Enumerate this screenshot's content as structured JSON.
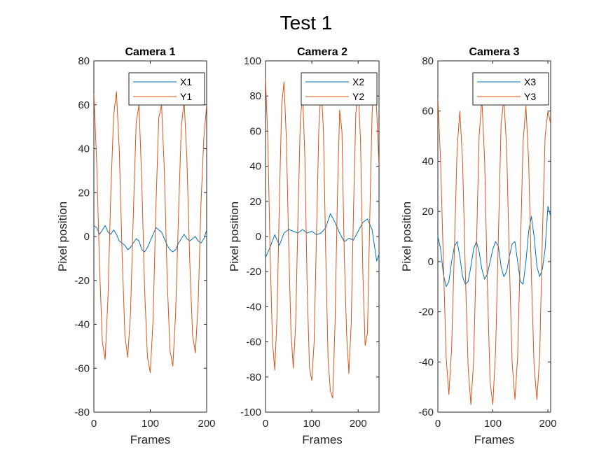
{
  "figure_title": "Test 1",
  "colors": {
    "x_series": "#0072BD",
    "y_series": "#D95319"
  },
  "chart_data": [
    {
      "type": "line",
      "title": "Camera 1",
      "xlabel": "Frames",
      "ylabel": "Pixel position",
      "xlim": [
        0,
        200
      ],
      "ylim": [
        -80,
        80
      ],
      "xticks": [
        0,
        100,
        200
      ],
      "yticks": [
        -80,
        -60,
        -40,
        -20,
        0,
        20,
        40,
        60,
        80
      ],
      "series": [
        {
          "name": "X1",
          "color": "#0072BD",
          "x": [
            0,
            5,
            10,
            15,
            20,
            25,
            30,
            35,
            40,
            45,
            50,
            55,
            60,
            65,
            70,
            75,
            80,
            85,
            90,
            95,
            100,
            105,
            110,
            115,
            120,
            125,
            130,
            135,
            140,
            145,
            150,
            155,
            160,
            165,
            170,
            175,
            180,
            185,
            190,
            195,
            200
          ],
          "y": [
            5,
            4,
            1,
            3,
            5,
            2,
            1,
            3,
            1,
            -2,
            -3,
            -4,
            -6,
            -5,
            -3,
            -1,
            -2,
            -6,
            -7,
            -5,
            -2,
            1,
            4,
            3,
            2,
            -1,
            -4,
            -6,
            -7,
            -6,
            -3,
            -1,
            1,
            -1,
            -2,
            -1,
            0,
            -2,
            -3,
            -1,
            3
          ]
        },
        {
          "name": "Y1",
          "color": "#D95319",
          "x": [
            0,
            5,
            10,
            15,
            20,
            25,
            30,
            35,
            40,
            45,
            50,
            55,
            60,
            65,
            70,
            75,
            80,
            85,
            90,
            95,
            100,
            105,
            110,
            115,
            120,
            125,
            130,
            135,
            140,
            145,
            150,
            155,
            160,
            165,
            170,
            175,
            180,
            185,
            190,
            195,
            200
          ],
          "y": [
            65,
            34,
            -14,
            -48,
            -56,
            -28,
            20,
            55,
            66,
            40,
            -8,
            -45,
            -55,
            -35,
            10,
            52,
            60,
            25,
            -24,
            -55,
            -62,
            -38,
            14,
            54,
            60,
            30,
            -20,
            -52,
            -59,
            -35,
            10,
            50,
            62,
            35,
            -12,
            -45,
            -53,
            -30,
            15,
            45,
            60
          ]
        }
      ]
    },
    {
      "type": "line",
      "title": "Camera 2",
      "xlabel": "Frames",
      "ylabel": "Pixel position",
      "xlim": [
        0,
        245
      ],
      "ylim": [
        -100,
        100
      ],
      "xticks": [
        0,
        100,
        200
      ],
      "yticks": [
        -100,
        -80,
        -60,
        -40,
        -20,
        0,
        20,
        40,
        60,
        80,
        100
      ],
      "series": [
        {
          "name": "X2",
          "color": "#0072BD",
          "x": [
            0,
            10,
            20,
            30,
            40,
            50,
            60,
            70,
            80,
            90,
            100,
            110,
            120,
            130,
            140,
            150,
            160,
            170,
            180,
            190,
            200,
            210,
            220,
            230,
            240,
            245
          ],
          "y": [
            -12,
            -6,
            1,
            -5,
            2,
            4,
            3,
            2,
            4,
            2,
            3,
            1,
            2,
            5,
            13,
            8,
            2,
            -3,
            -1,
            -2,
            3,
            8,
            10,
            4,
            -14,
            -10
          ]
        },
        {
          "name": "Y2",
          "color": "#D95319",
          "x": [
            0,
            5,
            10,
            15,
            20,
            25,
            30,
            35,
            40,
            45,
            50,
            55,
            60,
            65,
            70,
            75,
            80,
            85,
            90,
            95,
            100,
            105,
            110,
            115,
            120,
            125,
            130,
            135,
            140,
            145,
            150,
            155,
            160,
            165,
            170,
            175,
            180,
            185,
            190,
            195,
            200,
            205,
            210,
            215,
            220,
            225,
            230,
            235,
            240,
            245
          ],
          "y": [
            90,
            55,
            -10,
            -60,
            -76,
            -45,
            20,
            75,
            88,
            55,
            -5,
            -55,
            -75,
            -50,
            10,
            65,
            82,
            45,
            -30,
            -75,
            -82,
            -60,
            0,
            60,
            86,
            60,
            -10,
            -70,
            -88,
            -92,
            -50,
            20,
            72,
            60,
            -10,
            -55,
            -78,
            -50,
            15,
            70,
            85,
            55,
            -20,
            -62,
            -55,
            10,
            70,
            88,
            72,
            40
          ]
        }
      ]
    },
    {
      "type": "line",
      "title": "Camera 3",
      "xlabel": "Frames",
      "ylabel": "Pixel position",
      "xlim": [
        0,
        205
      ],
      "ylim": [
        -60,
        80
      ],
      "xticks": [
        0,
        100,
        200
      ],
      "yticks": [
        -60,
        -40,
        -20,
        0,
        20,
        40,
        60,
        80
      ],
      "series": [
        {
          "name": "X3",
          "color": "#0072BD",
          "x": [
            0,
            5,
            10,
            15,
            20,
            25,
            30,
            35,
            40,
            45,
            50,
            55,
            60,
            65,
            70,
            75,
            80,
            85,
            90,
            95,
            100,
            105,
            110,
            115,
            120,
            125,
            130,
            135,
            140,
            145,
            150,
            155,
            160,
            165,
            170,
            175,
            180,
            185,
            190,
            195,
            200,
            205
          ],
          "y": [
            10,
            5,
            -5,
            -10,
            -8,
            0,
            6,
            8,
            2,
            -6,
            -9,
            -8,
            -2,
            5,
            8,
            4,
            -3,
            -7,
            -5,
            0,
            5,
            8,
            6,
            -2,
            -6,
            -4,
            2,
            7,
            8,
            0,
            -8,
            -9,
            0,
            12,
            18,
            10,
            -2,
            -6,
            -3,
            5,
            22,
            18
          ]
        },
        {
          "name": "Y3",
          "color": "#D95319",
          "x": [
            0,
            5,
            10,
            15,
            20,
            25,
            30,
            35,
            40,
            45,
            50,
            55,
            60,
            65,
            70,
            75,
            80,
            85,
            90,
            95,
            100,
            105,
            110,
            115,
            120,
            125,
            130,
            135,
            140,
            145,
            150,
            155,
            160,
            165,
            170,
            175,
            180,
            185,
            190,
            195,
            200,
            205
          ],
          "y": [
            65,
            40,
            0,
            -38,
            -53,
            -35,
            5,
            45,
            60,
            40,
            -5,
            -42,
            -57,
            -40,
            5,
            50,
            65,
            40,
            -10,
            -48,
            -57,
            -35,
            10,
            55,
            65,
            45,
            0,
            -40,
            -55,
            -38,
            5,
            48,
            62,
            40,
            -5,
            -42,
            -55,
            -38,
            10,
            50,
            60,
            55
          ]
        }
      ]
    }
  ]
}
